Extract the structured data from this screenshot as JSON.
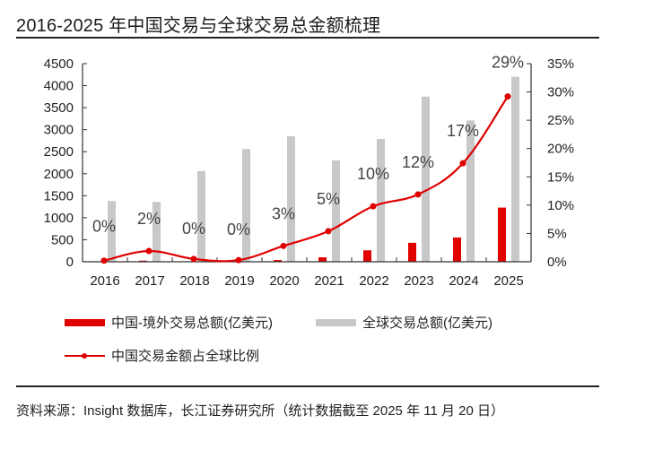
{
  "title": "2016-2025 年中国交易与全球交易总金额梳理",
  "source": "资料来源：Insight 数据库，长江证券研究所（统计数据截至 2025 年 11 月 20 日）",
  "chart_data": {
    "type": "bar",
    "title": "2016-2025 年中国交易与全球交易总金额梳理",
    "categories": [
      "2016",
      "2017",
      "2018",
      "2019",
      "2020",
      "2021",
      "2022",
      "2023",
      "2024",
      "2025"
    ],
    "series": [
      {
        "name": "中国-境外交易总额(亿美元)",
        "type": "bar",
        "axis": "left",
        "color": "#e00000",
        "values": [
          5,
          25,
          10,
          8,
          40,
          100,
          260,
          430,
          550,
          1230
        ]
      },
      {
        "name": "全球交易总额(亿美元)",
        "type": "bar",
        "axis": "left",
        "color": "#c8c8c8",
        "values": [
          1380,
          1360,
          2060,
          2560,
          2850,
          2300,
          2790,
          3750,
          3210,
          4200
        ]
      },
      {
        "name": "中国交易金额占全球比例",
        "type": "line",
        "axis": "right",
        "color": "#e00000",
        "values": [
          0.2,
          1.9,
          0.5,
          0.3,
          2.8,
          5.4,
          9.8,
          11.9,
          17.4,
          29.2
        ],
        "labels": [
          "0%",
          "2%",
          "0%",
          "0%",
          "3%",
          "5%",
          "10%",
          "12%",
          "17%",
          "29%"
        ]
      }
    ],
    "left_axis": {
      "min": 0,
      "max": 4500,
      "step": 500,
      "ticks": [
        "0",
        "500",
        "1000",
        "1500",
        "2000",
        "2500",
        "3000",
        "3500",
        "4000",
        "4500"
      ]
    },
    "right_axis": {
      "min": 0,
      "max": 35,
      "step": 5,
      "ticks": [
        "0%",
        "5%",
        "10%",
        "15%",
        "20%",
        "25%",
        "30%",
        "35%"
      ]
    },
    "xlabel": "",
    "ylabel": "",
    "grid": false,
    "legend": "bottom",
    "legend_items": [
      {
        "label": "中国-境外交易总额(亿美元)",
        "kind": "bar",
        "color": "#e00000"
      },
      {
        "label": "全球交易总额(亿美元)",
        "kind": "bar",
        "color": "#c8c8c8"
      },
      {
        "label": "中国交易金额占全球比例",
        "kind": "line",
        "color": "#e00000"
      }
    ]
  }
}
